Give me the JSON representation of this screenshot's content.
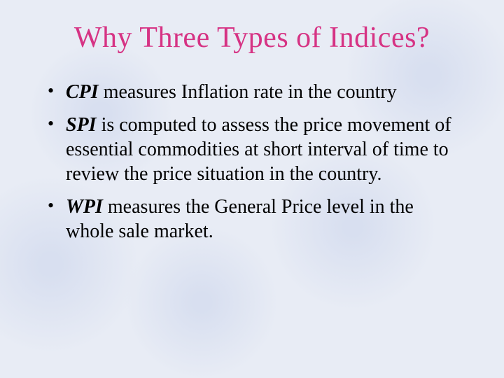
{
  "title": {
    "text": "Why Three Types of Indices?",
    "color": "#d63384",
    "fontsize": 42
  },
  "body": {
    "color": "#000000",
    "fontsize": 28,
    "bullet_color": "#000000"
  },
  "bullets": [
    {
      "term": "CPI",
      "rest": " measures Inflation rate in the country"
    },
    {
      "term": "SPI",
      "rest": " is computed to assess the price movement of essential commodities at short interval of time to review the price situation in the country."
    },
    {
      "term": "WPI",
      "rest": " measures the General Price level in the whole sale market."
    }
  ],
  "background_color": "#e8ecf5"
}
